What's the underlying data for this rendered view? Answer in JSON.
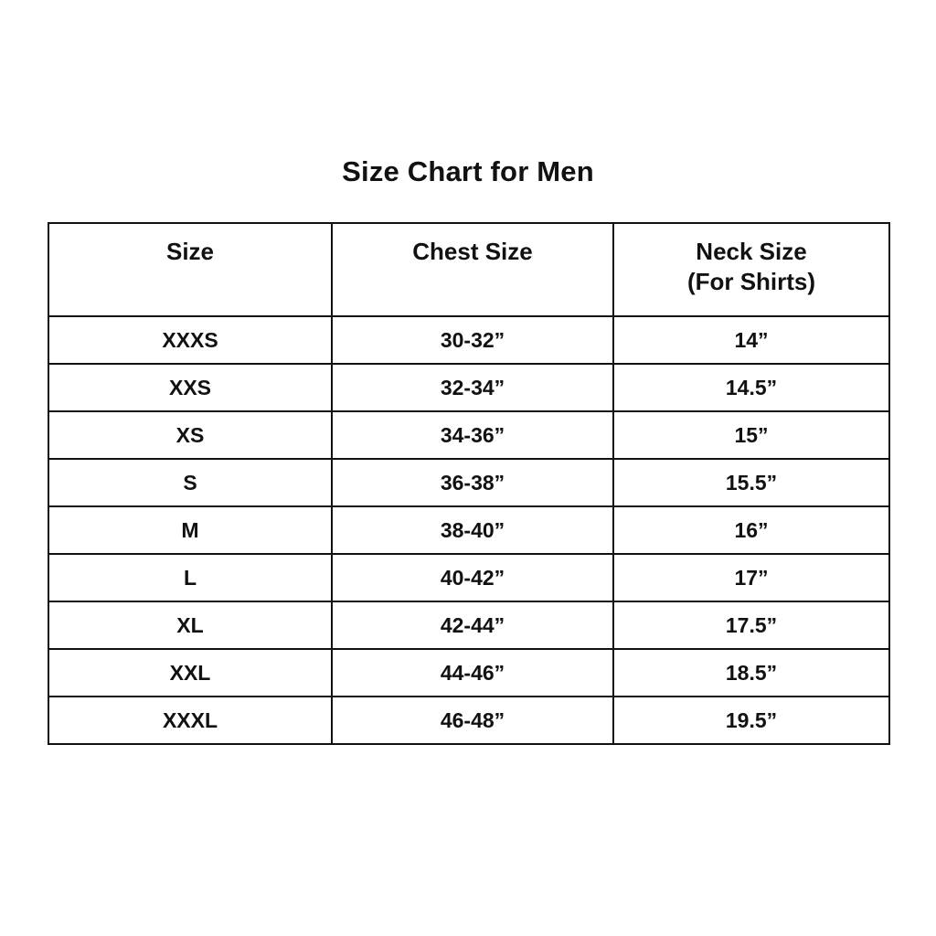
{
  "page": {
    "title": "Size Chart for Men"
  },
  "table": {
    "headers": {
      "size": "Size",
      "chest": "Chest Size",
      "neck_line1": "Neck Size",
      "neck_line2": "(For Shirts)"
    },
    "rows": [
      {
        "size": "XXXS",
        "chest": "30-32”",
        "neck": "14”"
      },
      {
        "size": "XXS",
        "chest": "32-34”",
        "neck": "14.5”"
      },
      {
        "size": "XS",
        "chest": "34-36”",
        "neck": "15”"
      },
      {
        "size": "S",
        "chest": "36-38”",
        "neck": "15.5”"
      },
      {
        "size": "M",
        "chest": "38-40”",
        "neck": "16”"
      },
      {
        "size": "L",
        "chest": "40-42”",
        "neck": "17”"
      },
      {
        "size": "XL",
        "chest": "42-44”",
        "neck": "17.5”"
      },
      {
        "size": "XXL",
        "chest": "44-46”",
        "neck": "18.5”"
      },
      {
        "size": "XXXL",
        "chest": "46-48”",
        "neck": "19.5”"
      }
    ]
  },
  "colors": {
    "background": "#ffffff",
    "text": "#111111",
    "border": "#111111"
  }
}
